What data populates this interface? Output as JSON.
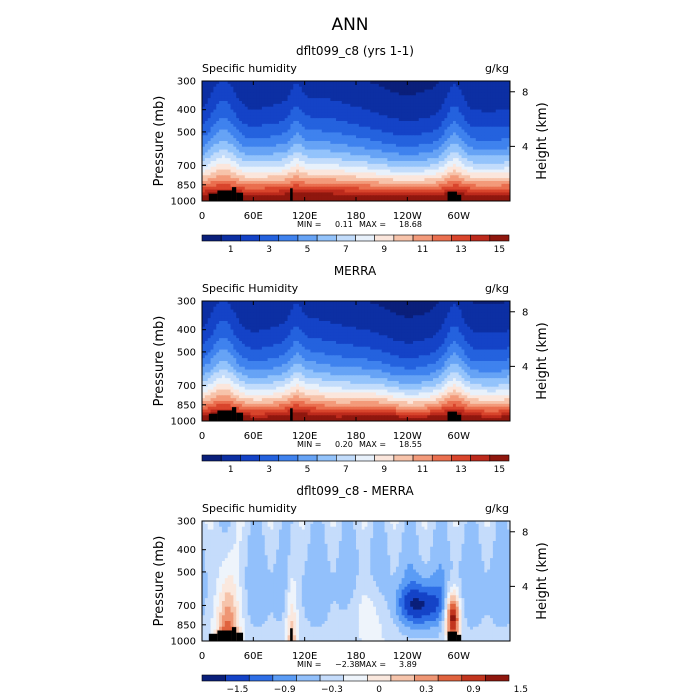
{
  "figure": {
    "title": "ANN"
  },
  "colors": {
    "seq": [
      "#0a1f7a",
      "#0c2fa3",
      "#1443c7",
      "#2462de",
      "#3f82ee",
      "#66a3f5",
      "#93c3fb",
      "#c2dcfb",
      "#e8f1fb",
      "#fbe6dc",
      "#f7c3aa",
      "#f39a7a",
      "#ea6f4f",
      "#d9452c",
      "#bd2a1c",
      "#8f170e"
    ],
    "div": [
      "#0a1f7a",
      "#1443c7",
      "#2e6ee6",
      "#5b9cf5",
      "#92c0fb",
      "#c5dcfb",
      "#eef4fb",
      "#fae8de",
      "#f6c4ab",
      "#ef9674",
      "#e0633e",
      "#c2351e",
      "#8f170e"
    ],
    "terrain": "#000000"
  },
  "panels": [
    {
      "id": "model",
      "title": "dflt099_c8 (yrs 1-1)",
      "left_label": "Specific humidity",
      "right_label": "g/kg",
      "stats": {
        "min_label": "MIN =",
        "min": "0.11",
        "max_label": "MAX =",
        "max": "18.68"
      },
      "colorbar_labels": [
        "1",
        "3",
        "5",
        "7",
        "9",
        "11",
        "13",
        "15"
      ]
    },
    {
      "id": "obs",
      "title": "MERRA",
      "left_label": "Specific Humidity",
      "right_label": "g/kg",
      "stats": {
        "min_label": "MIN =",
        "min": "0.20",
        "max_label": "MAX =",
        "max": "18.55"
      },
      "colorbar_labels": [
        "1",
        "3",
        "5",
        "7",
        "9",
        "11",
        "13",
        "15"
      ]
    },
    {
      "id": "diff",
      "title": "dflt099_c8 - MERRA",
      "left_label": "Specific humidity",
      "right_label": "g/kg",
      "stats": {
        "min_label": "MIN =",
        "min": "−2.38",
        "max_label": "MAX =",
        "max": "3.89"
      },
      "colorbar_labels": [
        "−1.5",
        "−0.9",
        "−0.3",
        "0",
        "0.3",
        "0.9",
        "1.5"
      ]
    }
  ],
  "chart_data": [
    {
      "type": "heatmap",
      "title": "dflt099_c8 (yrs 1-1)",
      "variable": "Specific humidity",
      "units": "g/kg",
      "xlabel": "",
      "ylabel": "Pressure (mb)",
      "y2label": "Height (km)",
      "x_ticks": [
        "0",
        "60E",
        "120E",
        "180",
        "120W",
        "60W"
      ],
      "x_tick_values": [
        0,
        60,
        120,
        180,
        240,
        300
      ],
      "xlim": [
        0,
        360
      ],
      "y_ticks": [
        "300",
        "400",
        "500",
        "700",
        "850",
        "1000"
      ],
      "y_tick_values": [
        300,
        400,
        500,
        700,
        850,
        1000
      ],
      "ylim": [
        1000,
        300
      ],
      "y2_ticks": [
        "4",
        "8"
      ],
      "y2_tick_values": [
        4,
        8
      ],
      "contour_levels": [
        0,
        1,
        2,
        3,
        4,
        5,
        6,
        7,
        8,
        9,
        10,
        11,
        12,
        13,
        14,
        15,
        16
      ],
      "min": 0.11,
      "max": 18.68
    },
    {
      "type": "heatmap",
      "title": "MERRA",
      "variable": "Specific Humidity",
      "units": "g/kg",
      "xlabel": "",
      "ylabel": "Pressure (mb)",
      "y2label": "Height (km)",
      "x_ticks": [
        "0",
        "60E",
        "120E",
        "180",
        "120W",
        "60W"
      ],
      "x_tick_values": [
        0,
        60,
        120,
        180,
        240,
        300
      ],
      "xlim": [
        0,
        360
      ],
      "y_ticks": [
        "300",
        "400",
        "500",
        "700",
        "850",
        "1000"
      ],
      "y_tick_values": [
        300,
        400,
        500,
        700,
        850,
        1000
      ],
      "ylim": [
        1000,
        300
      ],
      "y2_ticks": [
        "4",
        "8"
      ],
      "y2_tick_values": [
        4,
        8
      ],
      "contour_levels": [
        0,
        1,
        2,
        3,
        4,
        5,
        6,
        7,
        8,
        9,
        10,
        11,
        12,
        13,
        14,
        15,
        16
      ],
      "min": 0.2,
      "max": 18.55
    },
    {
      "type": "heatmap",
      "title": "dflt099_c8 - MERRA",
      "variable": "Specific humidity",
      "units": "g/kg",
      "xlabel": "",
      "ylabel": "Pressure (mb)",
      "y2label": "Height (km)",
      "x_ticks": [
        "0",
        "60E",
        "120E",
        "180",
        "120W",
        "60W"
      ],
      "x_tick_values": [
        0,
        60,
        120,
        180,
        240,
        300
      ],
      "xlim": [
        0,
        360
      ],
      "y_ticks": [
        "300",
        "400",
        "500",
        "700",
        "850",
        "1000"
      ],
      "y_tick_values": [
        300,
        400,
        500,
        700,
        850,
        1000
      ],
      "ylim": [
        1000,
        300
      ],
      "y2_ticks": [
        "4",
        "8"
      ],
      "y2_tick_values": [
        4,
        8
      ],
      "contour_levels": [
        -1.8,
        -1.5,
        -1.2,
        -0.9,
        -0.6,
        -0.3,
        0,
        0.3,
        0.6,
        0.9,
        1.2,
        1.5,
        1.8
      ],
      "min": -2.38,
      "max": 3.89
    }
  ]
}
